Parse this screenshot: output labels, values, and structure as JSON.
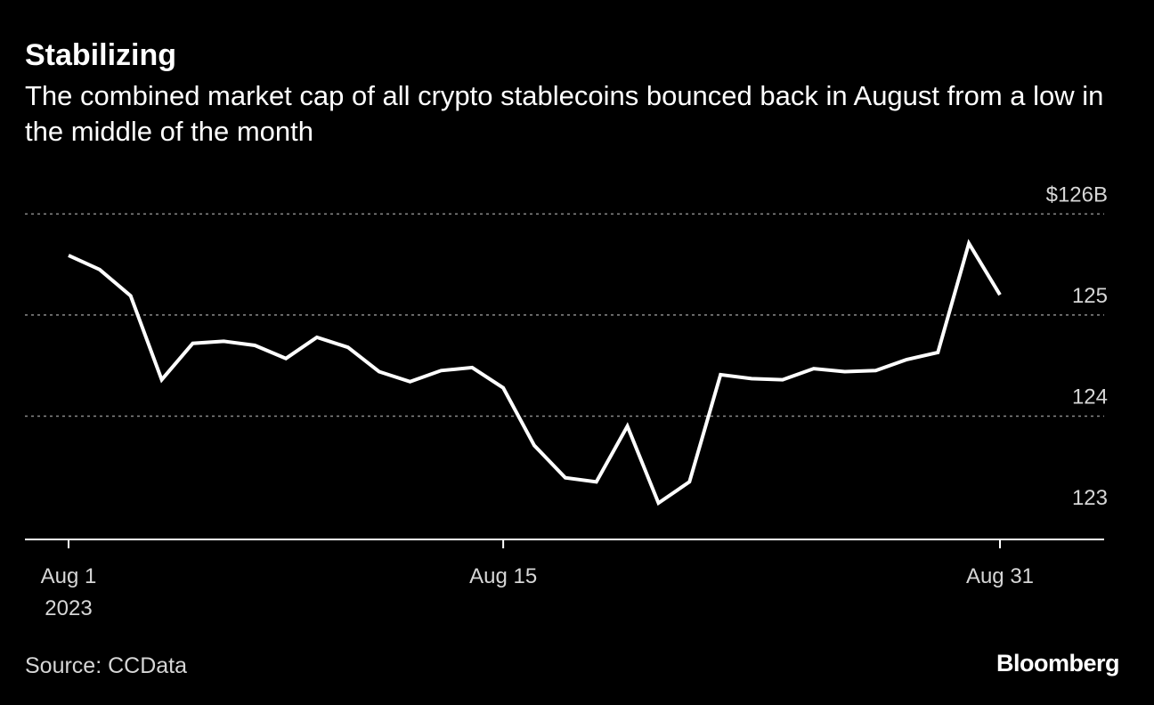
{
  "header": {
    "title": "Stabilizing",
    "subtitle": "The combined market cap of all crypto stablecoins bounced back in August from a low in the middle of the month"
  },
  "footer": {
    "source": "Source: CCData",
    "brand": "Bloomberg"
  },
  "colors": {
    "background": "#000000",
    "line": "#ffffff",
    "grid": "#8a8a8a",
    "axis": "#ffffff",
    "text": "#ffffff",
    "muted_text": "#d6d6d6"
  },
  "chart_data": {
    "type": "line",
    "title": "Stabilizing",
    "subtitle": "The combined market cap of all crypto stablecoins bounced back in August from a low in the middle of the month",
    "xlabel": "",
    "ylabel": "",
    "grid": true,
    "x_dates": [
      "2023-08-01",
      "2023-08-02",
      "2023-08-03",
      "2023-08-04",
      "2023-08-05",
      "2023-08-06",
      "2023-08-07",
      "2023-08-08",
      "2023-08-09",
      "2023-08-10",
      "2023-08-11",
      "2023-08-12",
      "2023-08-13",
      "2023-08-14",
      "2023-08-15",
      "2023-08-16",
      "2023-08-17",
      "2023-08-18",
      "2023-08-19",
      "2023-08-20",
      "2023-08-21",
      "2023-08-22",
      "2023-08-23",
      "2023-08-24",
      "2023-08-25",
      "2023-08-26",
      "2023-08-27",
      "2023-08-28",
      "2023-08-29",
      "2023-08-30",
      "2023-08-31"
    ],
    "xlim": [
      "2023-08-01",
      "2023-08-31"
    ],
    "ylim": [
      122.78,
      125.95
    ],
    "series": [
      {
        "values": [
          125.59,
          125.45,
          125.19,
          124.36,
          124.72,
          124.74,
          124.7,
          124.57,
          124.78,
          124.68,
          124.44,
          124.34,
          124.45,
          124.48,
          124.28,
          123.71,
          123.39,
          123.35,
          123.9,
          123.14,
          123.35,
          124.41,
          124.37,
          124.36,
          124.47,
          124.44,
          124.45,
          124.56,
          124.63,
          125.71,
          125.2
        ]
      }
    ],
    "y_ticks": [
      {
        "value": 126,
        "label": "$126B"
      },
      {
        "value": 125,
        "label": "125"
      },
      {
        "value": 124,
        "label": "124"
      },
      {
        "value": 123,
        "label": "123"
      }
    ],
    "x_ticks": [
      {
        "date": "2023-08-01",
        "label": "Aug 1",
        "sublabel": "2023"
      },
      {
        "date": "2023-08-15",
        "label": "Aug 15",
        "sublabel": ""
      },
      {
        "date": "2023-08-31",
        "label": "Aug 31",
        "sublabel": ""
      }
    ]
  }
}
